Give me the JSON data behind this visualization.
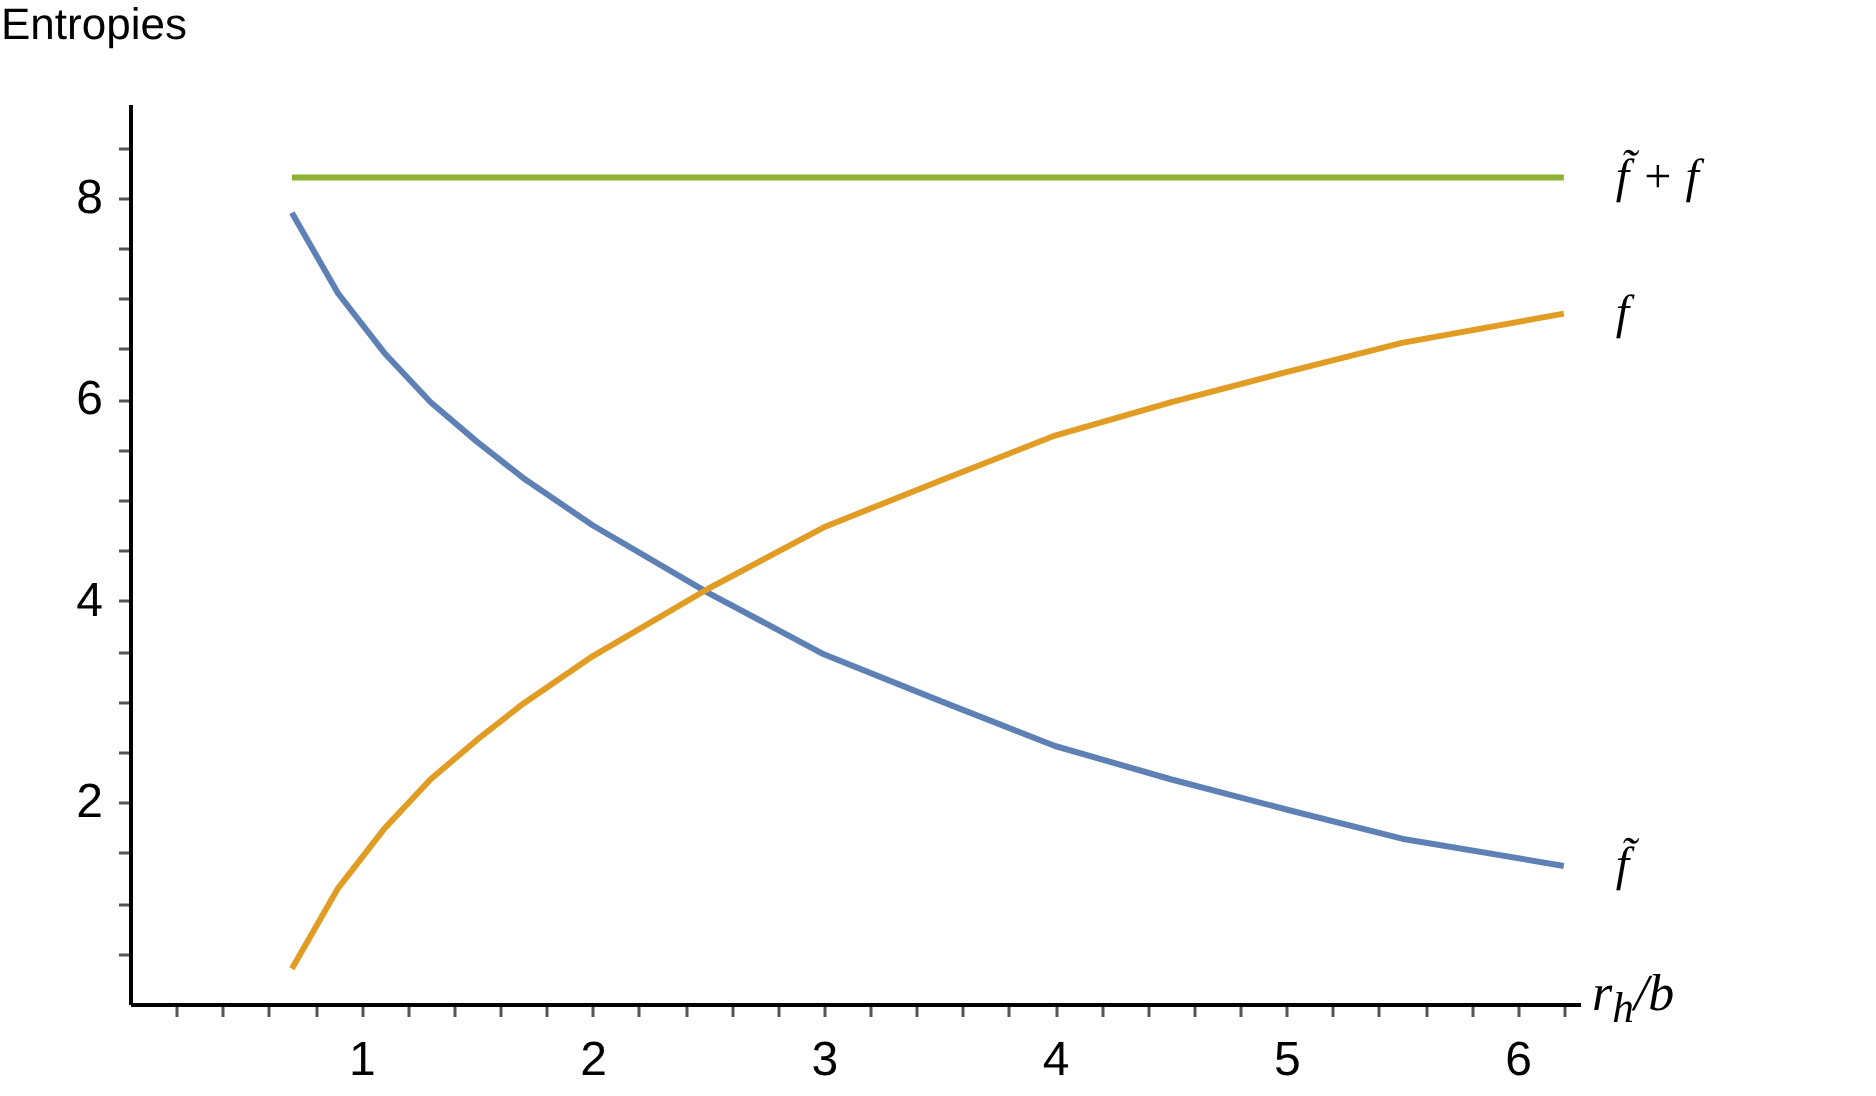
{
  "chart_data": {
    "type": "line",
    "ylabel": "Entropies",
    "xlabel": "r$_{h}$/b",
    "x": [
      0.7,
      0.9,
      1.1,
      1.3,
      1.5,
      1.7,
      2.0,
      2.5,
      3.0,
      3.5,
      4.0,
      4.5,
      5.0,
      5.5,
      6.2
    ],
    "series": [
      {
        "name": "f̃",
        "color": "#5e81b5",
        "values": [
          7.85,
          7.05,
          6.46,
          5.97,
          5.58,
          5.22,
          4.75,
          4.08,
          3.47,
          3.01,
          2.56,
          2.23,
          1.93,
          1.64,
          1.37
        ]
      },
      {
        "name": "f",
        "color": "#e19c24",
        "values": [
          0.35,
          1.15,
          1.74,
          2.23,
          2.62,
          2.98,
          3.45,
          4.12,
          4.73,
          5.19,
          5.64,
          5.97,
          6.27,
          6.56,
          6.85
        ]
      },
      {
        "name": "f̃ + f",
        "color": "#8fb032",
        "values": [
          8.2,
          8.2,
          8.2,
          8.2,
          8.2,
          8.2,
          8.2,
          8.2,
          8.2,
          8.2,
          8.2,
          8.2,
          8.2,
          8.2,
          8.2
        ]
      }
    ],
    "xlim": [
      0,
      6.27
    ],
    "ylim": [
      0,
      8.93
    ],
    "xticks": [
      {
        "value": 0.2,
        "label": null
      },
      {
        "value": 0.4,
        "label": null
      },
      {
        "value": 0.6,
        "label": null
      },
      {
        "value": 0.8,
        "label": null
      },
      1,
      {
        "value": 1.2,
        "label": null
      },
      {
        "value": 1.4,
        "label": null
      },
      {
        "value": 1.6,
        "label": null
      },
      {
        "value": 1.8,
        "label": null
      },
      2,
      {
        "value": 2.2,
        "label": null
      },
      {
        "value": 2.4,
        "label": null
      },
      {
        "value": 2.6,
        "label": null
      },
      {
        "value": 2.8,
        "label": null
      },
      3,
      {
        "value": 3.2,
        "label": null
      },
      {
        "value": 3.4,
        "label": null
      },
      {
        "value": 3.6,
        "label": null
      },
      {
        "value": 3.8,
        "label": null
      },
      4,
      {
        "value": 4.2,
        "label": null
      },
      {
        "value": 4.4,
        "label": null
      },
      {
        "value": 4.6,
        "label": null
      },
      {
        "value": 4.8,
        "label": null
      },
      5,
      {
        "value": 5.2,
        "label": null
      },
      {
        "value": 5.4,
        "label": null
      },
      {
        "value": 5.6,
        "label": null
      },
      {
        "value": 5.8,
        "label": null
      },
      6,
      {
        "value": 6.2,
        "label": null
      }
    ],
    "yticks": [
      {
        "value": 0.5,
        "label": null
      },
      {
        "value": 1,
        "label": null
      },
      {
        "value": 1.5,
        "label": null
      },
      2,
      {
        "value": 2.5,
        "label": null
      },
      {
        "value": 3,
        "label": null
      },
      {
        "value": 3.5,
        "label": null
      },
      4,
      {
        "value": 4.5,
        "label": null
      },
      {
        "value": 5,
        "label": null
      },
      {
        "value": 5.5,
        "label": null
      },
      6,
      {
        "value": 6.5,
        "label": null
      },
      {
        "value": 7,
        "label": null
      },
      {
        "value": 7.5,
        "label": null
      },
      8,
      {
        "value": 8.5,
        "label": null
      }
    ],
    "grid": false,
    "legend": false,
    "line_style": "solid"
  }
}
